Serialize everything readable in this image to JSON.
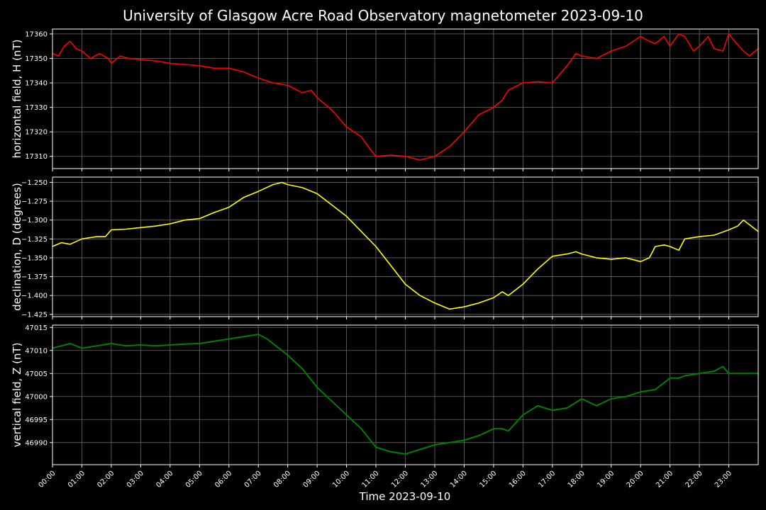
{
  "title": "University of Glasgow Acre Road Observatory magnetometer 2023-09-10",
  "xlabel": "Time 2023-09-10",
  "chart_data": [
    {
      "type": "line",
      "ylabel": "horizontal field, H (nT)",
      "color": "#ff0000",
      "xlim": [
        0,
        24
      ],
      "ylim": [
        17305,
        17362
      ],
      "yticks": [
        17310,
        17320,
        17330,
        17340,
        17350,
        17360
      ],
      "ytick_labels": [
        "17310",
        "17320",
        "17330",
        "17340",
        "17350",
        "17360"
      ],
      "grid": true,
      "x": [
        0.0,
        0.2,
        0.4,
        0.6,
        0.8,
        1.0,
        1.3,
        1.6,
        1.9,
        2.0,
        2.3,
        2.6,
        3.0,
        3.5,
        4.0,
        4.5,
        5.0,
        5.5,
        6.0,
        6.5,
        7.0,
        7.5,
        8.0,
        8.5,
        8.8,
        9.0,
        9.5,
        10.0,
        10.5,
        10.8,
        11.0,
        11.5,
        12.0,
        12.5,
        13.0,
        13.5,
        14.0,
        14.5,
        15.0,
        15.3,
        15.5,
        16.0,
        16.5,
        17.0,
        17.5,
        17.8,
        18.0,
        18.5,
        19.0,
        19.5,
        20.0,
        20.3,
        20.5,
        20.8,
        21.0,
        21.3,
        21.5,
        21.8,
        22.0,
        22.3,
        22.5,
        22.8,
        23.0,
        23.2,
        23.5,
        23.7,
        24.0
      ],
      "y": [
        17352,
        17351,
        17355,
        17357,
        17354,
        17353,
        17350,
        17352,
        17350,
        17348,
        17351,
        17350,
        17349.5,
        17349,
        17348,
        17347.5,
        17347,
        17346,
        17346,
        17344.5,
        17342,
        17340,
        17339,
        17336,
        17337,
        17334,
        17329,
        17322,
        17318,
        17313,
        17310,
        17310.5,
        17310,
        17308.5,
        17310,
        17314,
        17320,
        17327,
        17330,
        17333,
        17337,
        17340,
        17340.5,
        17340,
        17347,
        17352,
        17351,
        17350,
        17353,
        17355,
        17359,
        17357,
        17356,
        17359,
        17355,
        17360,
        17359,
        17353,
        17355,
        17359,
        17354,
        17353,
        17360,
        17357,
        17353,
        17351,
        17354
      ]
    },
    {
      "type": "line",
      "ylabel": "declination, D (degrees)",
      "color": "#ffff00",
      "xlim": [
        0,
        24
      ],
      "ylim": [
        -1.428,
        -1.243
      ],
      "yticks": [
        -1.425,
        -1.4,
        -1.375,
        -1.35,
        -1.325,
        -1.3,
        -1.275,
        -1.25
      ],
      "ytick_labels": [
        "−1.425",
        "−1.400",
        "−1.375",
        "−1.350",
        "−1.325",
        "−1.300",
        "−1.275",
        "−1.250"
      ],
      "grid": true,
      "x": [
        0.0,
        0.3,
        0.6,
        1.0,
        1.5,
        1.8,
        2.0,
        2.5,
        3.0,
        3.5,
        4.0,
        4.5,
        5.0,
        5.5,
        6.0,
        6.5,
        7.0,
        7.5,
        7.8,
        8.0,
        8.5,
        9.0,
        9.5,
        10.0,
        10.5,
        11.0,
        11.5,
        12.0,
        12.5,
        13.0,
        13.5,
        14.0,
        14.5,
        15.0,
        15.3,
        15.5,
        16.0,
        16.5,
        17.0,
        17.5,
        17.8,
        18.0,
        18.5,
        19.0,
        19.5,
        20.0,
        20.3,
        20.5,
        20.8,
        21.0,
        21.3,
        21.5,
        22.0,
        22.5,
        23.0,
        23.3,
        23.5,
        24.0
      ],
      "y": [
        -1.335,
        -1.33,
        -1.332,
        -1.325,
        -1.322,
        -1.322,
        -1.313,
        -1.312,
        -1.31,
        -1.308,
        -1.305,
        -1.3,
        -1.298,
        -1.29,
        -1.283,
        -1.27,
        -1.262,
        -1.253,
        -1.25,
        -1.253,
        -1.257,
        -1.265,
        -1.28,
        -1.295,
        -1.315,
        -1.335,
        -1.36,
        -1.385,
        -1.4,
        -1.41,
        -1.418,
        -1.415,
        -1.41,
        -1.403,
        -1.395,
        -1.4,
        -1.385,
        -1.365,
        -1.348,
        -1.345,
        -1.342,
        -1.345,
        -1.35,
        -1.352,
        -1.35,
        -1.355,
        -1.35,
        -1.335,
        -1.333,
        -1.335,
        -1.34,
        -1.325,
        -1.322,
        -1.32,
        -1.313,
        -1.308,
        -1.3,
        -1.315
      ]
    },
    {
      "type": "line",
      "ylabel": "vertical field, Z (nT)",
      "color": "#008000",
      "xlim": [
        0,
        24
      ],
      "ylim": [
        46985.2,
        47015.5
      ],
      "yticks": [
        46990,
        46995,
        47000,
        47005,
        47010,
        47015
      ],
      "ytick_labels": [
        "46990",
        "46995",
        "47000",
        "47005",
        "47010",
        "47015"
      ],
      "grid": true,
      "x": [
        0.0,
        0.3,
        0.6,
        1.0,
        1.5,
        2.0,
        2.5,
        3.0,
        3.5,
        4.0,
        4.5,
        5.0,
        5.5,
        6.0,
        6.5,
        7.0,
        7.3,
        7.6,
        8.0,
        8.5,
        9.0,
        9.5,
        10.0,
        10.5,
        11.0,
        11.5,
        12.0,
        12.5,
        13.0,
        13.5,
        14.0,
        14.5,
        15.0,
        15.3,
        15.5,
        16.0,
        16.5,
        17.0,
        17.5,
        18.0,
        18.5,
        19.0,
        19.5,
        20.0,
        20.5,
        21.0,
        21.3,
        21.5,
        22.0,
        22.5,
        22.8,
        23.0,
        23.5,
        24.0
      ],
      "y": [
        47010.5,
        47011,
        47011.5,
        47010.5,
        47011,
        47011.5,
        47011,
        47011.2,
        47011,
        47011.2,
        47011.4,
        47011.5,
        47012,
        47012.5,
        47013,
        47013.5,
        47012.5,
        47011,
        47009,
        47006,
        47002,
        46999,
        46996,
        46993,
        46989,
        46988,
        46987.5,
        46988.5,
        46989.5,
        46990,
        46990.5,
        46991.5,
        46993,
        46993,
        46992.5,
        46996,
        46998,
        46997,
        46997.5,
        46999.5,
        46998,
        46999.5,
        47000,
        47001,
        47001.5,
        47004,
        47004,
        47004.5,
        47005,
        47005.5,
        47006.5,
        47005,
        47005,
        47005
      ]
    }
  ],
  "xticks": [
    0,
    1,
    2,
    3,
    4,
    5,
    6,
    7,
    8,
    9,
    10,
    11,
    12,
    13,
    14,
    15,
    16,
    17,
    18,
    19,
    20,
    21,
    22,
    23
  ],
  "xtick_labels": [
    "00:00",
    "01:00",
    "02:00",
    "03:00",
    "04:00",
    "05:00",
    "06:00",
    "07:00",
    "08:00",
    "09:00",
    "10:00",
    "11:00",
    "12:00",
    "13:00",
    "14:00",
    "15:00",
    "16:00",
    "17:00",
    "18:00",
    "19:00",
    "20:00",
    "21:00",
    "22:00",
    "23:00"
  ]
}
